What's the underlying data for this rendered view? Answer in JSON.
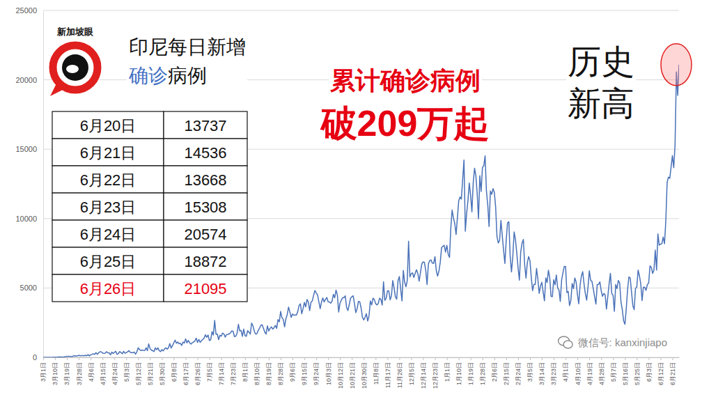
{
  "chart_data": {
    "type": "line",
    "title": "印尼每日新增确诊病例",
    "categories": [
      "3月1日",
      null,
      null,
      null,
      null,
      null,
      null,
      null,
      null,
      "3月10日",
      null,
      null,
      null,
      null,
      null,
      null,
      null,
      null,
      "3月19日",
      null,
      null,
      null,
      null,
      null,
      null,
      null,
      null,
      "3月28日",
      null,
      null,
      null,
      null,
      null,
      null,
      null,
      null,
      "4月6日",
      null,
      null,
      null,
      null,
      null,
      null,
      null,
      null,
      "4月15日",
      null,
      null,
      null,
      null,
      null,
      null,
      null,
      null,
      "4月24日",
      null,
      null,
      null,
      null,
      null,
      null,
      null,
      null,
      "5月3日",
      null,
      null,
      null,
      null,
      null,
      null,
      null,
      null,
      "5月12日",
      null,
      null,
      null,
      null,
      null,
      null,
      null,
      null,
      "5月21日",
      null,
      null,
      null,
      null,
      null,
      null,
      null,
      null,
      "5月30日",
      null,
      null,
      null,
      null,
      null,
      null,
      null,
      null,
      "6月8日",
      null,
      null,
      null,
      null,
      null,
      null,
      null,
      null,
      "6月17日",
      null,
      null,
      null,
      null,
      null,
      null,
      null,
      null,
      "6月26日",
      null,
      null,
      null,
      null,
      null,
      null,
      null,
      null,
      "7月5日",
      null,
      null,
      null,
      null,
      null,
      null,
      null,
      null,
      "7月14日",
      null,
      null,
      null,
      null,
      null,
      null,
      null,
      null,
      "7月23日",
      null,
      null,
      null,
      null,
      null,
      null,
      null,
      null,
      "8月1日",
      null,
      null,
      null,
      null,
      null,
      null,
      null,
      null,
      "8月10日",
      null,
      null,
      null,
      null,
      null,
      null,
      null,
      null,
      "8月19日",
      null,
      null,
      null,
      null,
      null,
      null,
      null,
      null,
      "8月28日",
      null,
      null,
      null,
      null,
      null,
      null,
      null,
      null,
      "9月6日",
      null,
      null,
      null,
      null,
      null,
      null,
      null,
      null,
      "9月15日",
      null,
      null,
      null,
      null,
      null,
      null,
      null,
      null,
      "9月24日",
      null,
      null,
      null,
      null,
      null,
      null,
      null,
      null,
      "10月3日",
      null,
      null,
      null,
      null,
      null,
      null,
      null,
      null,
      "10月12日",
      null,
      null,
      null,
      null,
      null,
      null,
      null,
      null,
      "10月21日",
      null,
      null,
      null,
      null,
      null,
      null,
      null,
      null,
      "10月30日",
      null,
      null,
      null,
      null,
      null,
      null,
      null,
      null,
      "11月8日",
      null,
      null,
      null,
      null,
      null,
      null,
      null,
      null,
      "11月17日",
      null,
      null,
      null,
      null,
      null,
      null,
      null,
      null,
      "11月26日",
      null,
      null,
      null,
      null,
      null,
      null,
      null,
      null,
      "12月5日",
      null,
      null,
      null,
      null,
      null,
      null,
      null,
      null,
      "12月14日",
      null,
      null,
      null,
      null,
      null,
      null,
      null,
      null,
      "12月23日",
      null,
      null,
      null,
      null,
      null,
      null,
      null,
      null,
      "1月1日",
      null,
      null,
      null,
      null,
      null,
      null,
      null,
      null,
      "1月10日",
      null,
      null,
      null,
      null,
      null,
      null,
      null,
      null,
      "1月19日",
      null,
      null,
      null,
      null,
      null,
      null,
      null,
      null,
      "1月28日",
      null,
      null,
      null,
      null,
      null,
      null,
      null,
      null,
      "2月6日",
      null,
      null,
      null,
      null,
      null,
      null,
      null,
      null,
      "2月15日",
      null,
      null,
      null,
      null,
      null,
      null,
      null,
      null,
      "2月24日",
      null,
      null,
      null,
      null,
      null,
      null,
      null,
      null,
      "3月5日",
      null,
      null,
      null,
      null,
      null,
      null,
      null,
      null,
      "3月14日",
      null,
      null,
      null,
      null,
      null,
      null,
      null,
      null,
      "3月23日",
      null,
      null,
      null,
      null,
      null,
      null,
      null,
      null,
      "4月1日",
      null,
      null,
      null,
      null,
      null,
      null,
      null,
      null,
      "4月10日",
      null,
      null,
      null,
      null,
      null,
      null,
      null,
      null,
      "4月19日",
      null,
      null,
      null,
      null,
      null,
      null,
      null,
      null,
      "4月28日",
      null,
      null,
      null,
      null,
      null,
      null,
      null,
      null,
      "5月7日",
      null,
      null,
      null,
      null,
      null,
      null,
      null,
      null,
      "5月16日",
      null,
      null,
      null,
      null,
      null,
      null,
      null,
      null,
      "5月25日",
      null,
      null,
      null,
      null,
      null,
      null,
      null,
      null,
      "6月3日",
      null,
      null,
      null,
      null,
      null,
      null,
      null,
      null,
      "6月12日",
      null,
      null,
      null,
      null,
      null,
      null,
      null,
      null,
      "6月21日",
      null,
      null,
      null,
      null,
      null
    ],
    "values": [
      0,
      2,
      0,
      0,
      0,
      2,
      0,
      2,
      13,
      8,
      15,
      7,
      35,
      27,
      21,
      17,
      38,
      55,
      82,
      60,
      81,
      64,
      65,
      106,
      107,
      104,
      103,
      153,
      109,
      130,
      129,
      114,
      149,
      113,
      196,
      106,
      181,
      218,
      247,
      218,
      337,
      219,
      330,
      399,
      399,
      316,
      282,
      297,
      407,
      325,
      327,
      185,
      375,
      283,
      357,
      436,
      214,
      275,
      415,
      347,
      260,
      433,
      292,
      349,
      395,
      484,
      367,
      338,
      336,
      387,
      233,
      386,
      689,
      568,
      490,
      529,
      496,
      489,
      693,
      486,
      973,
      634,
      526,
      479,
      415,
      687,
      553,
      686,
      479,
      415,
      557,
      467,
      609,
      684,
      585,
      703,
      993,
      672,
      847,
      1043,
      1241,
      1017,
      1111,
      979,
      1014,
      857,
      1106,
      1031,
      1331,
      1041,
      1226,
      1051,
      954,
      1051,
      1113,
      1178,
      1385,
      1082,
      1293,
      1082,
      1198,
      1293,
      1385,
      1624,
      1447,
      1607,
      1209,
      1268,
      1853,
      1611,
      2657,
      1671,
      1681,
      1282,
      1591,
      1522,
      1752,
      1693,
      1462,
      1639,
      1655,
      1693,
      1761,
      1906,
      1868,
      1492,
      1525,
      1748,
      2381,
      1904,
      1942,
      1519,
      2040,
      1560,
      1519,
      1922,
      1815,
      1679,
      2473,
      2277,
      1893,
      1687,
      1693,
      1942,
      2098,
      2307,
      2345,
      2081,
      1821,
      1673,
      2266,
      1902,
      2088,
      2197,
      2037,
      2135,
      2306,
      2090,
      2719,
      2564,
      3308,
      2858,
      2743,
      2198,
      2775,
      3075,
      3622,
      3269,
      2881,
      3128,
      3035,
      3046,
      3049,
      3307,
      3737,
      3861,
      3141,
      3506,
      3963,
      3636,
      4168,
      3989,
      3373,
      3963,
      4071,
      4465,
      4823,
      4634,
      4494,
      3989,
      3509,
      4002,
      4284,
      3991,
      4174,
      4317,
      4007,
      3992,
      3906,
      4056,
      4538,
      4294,
      4850,
      4497,
      3267,
      3906,
      4127,
      4301,
      4301,
      4432,
      3602,
      3373,
      3803,
      4267,
      4369,
      4432,
      3843,
      3222,
      3520,
      4029,
      4000,
      3565,
      2897,
      2696,
      2893,
      3143,
      2618,
      2973,
      4065,
      3778,
      4262,
      4173,
      3880,
      3779,
      3880,
      4262,
      4173,
      3770,
      5444,
      4106,
      4265,
      4798,
      4792,
      4142,
      4442,
      5534,
      4998,
      4360,
      4192,
      5534,
      5828,
      4917,
      4071,
      6267,
      5418,
      5092,
      5533,
      8369,
      5803,
      6027,
      6089,
      5754,
      6058,
      6310,
      6033,
      5489,
      6120,
      6726,
      6877,
      6848,
      6258,
      5246,
      6725,
      6982,
      7021,
      6793,
      6771,
      7259,
      6236,
      5854,
      6213,
      6848,
      7903,
      8002,
      8074,
      7585,
      8072,
      7445,
      7203,
      9321,
      10617,
      10046,
      9640,
      8854,
      10047,
      11278,
      11557,
      11401,
      12818,
      14224,
      9086,
      10365,
      11287,
      12568,
      11703,
      10487,
      12568,
      13632,
      13094,
      11788,
      9994,
      13094,
      11948,
      13695,
      13802,
      14518,
      12001,
      10994,
      9429,
      11984,
      11749,
      12156,
      11900,
      10827,
      8700,
      8242,
      8435,
      9869,
      8776,
      7735,
      6765,
      8435,
      9687,
      9775,
      7300,
      6156,
      7264,
      9039,
      8493,
      7533,
      6445,
      5560,
      7598,
      8232,
      8493,
      6680,
      5712,
      6808,
      7264,
      6971,
      5767,
      4812,
      5254,
      5254,
      6412,
      5633,
      4607,
      5144,
      5414,
      4714,
      4077,
      5720,
      5393,
      6279,
      5736,
      4396,
      4376,
      5600,
      5227,
      5937,
      5008,
      4851,
      4033,
      5561,
      6096,
      6555,
      6555,
      4671,
      4754,
      3731,
      4081,
      5325,
      4952,
      5722,
      5433,
      4525,
      3864,
      5184,
      5861,
      6177,
      5297,
      4585,
      4123,
      5041,
      6243,
      5549,
      5476,
      4952,
      4369,
      3837,
      5241,
      5253,
      5444,
      4808,
      4402,
      4605,
      4512,
      3480,
      4369,
      5285,
      6054,
      4608,
      4465,
      3317,
      5251,
      4959,
      5545,
      5368,
      3992,
      3448,
      2633,
      2385,
      3480,
      4871,
      5797,
      5722,
      4711,
      3720,
      3439,
      4952,
      5080,
      6293,
      5862,
      5305,
      4095,
      5060,
      5060,
      4824,
      5246,
      5353,
      6594,
      6486,
      6047,
      6293,
      7725,
      6294,
      8892,
      8083,
      8161,
      8189,
      8668,
      8189,
      9868,
      12624,
      12990,
      12906,
      13737,
      14536,
      13668,
      15308,
      20574,
      18872,
      21095
    ],
    "color": "#4a72b8",
    "ylim": [
      0,
      25000
    ],
    "yticks": [
      0,
      5000,
      10000,
      15000,
      20000,
      25000
    ],
    "grid": true,
    "annotations": [
      {
        "text": "累计确诊病例"
      },
      {
        "text": "破209万起"
      },
      {
        "text": "历史新高"
      },
      {
        "text": "新加坡眼"
      },
      {
        "text": "微信号: kanxinjiapo"
      }
    ],
    "table": {
      "rows": [
        [
          "6月20日",
          13737
        ],
        [
          "6月21日",
          14536
        ],
        [
          "6月22日",
          13668
        ],
        [
          "6月23日",
          15308
        ],
        [
          "6月24日",
          20574
        ],
        [
          "6月25日",
          18872
        ],
        [
          "6月26日",
          21095
        ]
      ]
    }
  }
}
